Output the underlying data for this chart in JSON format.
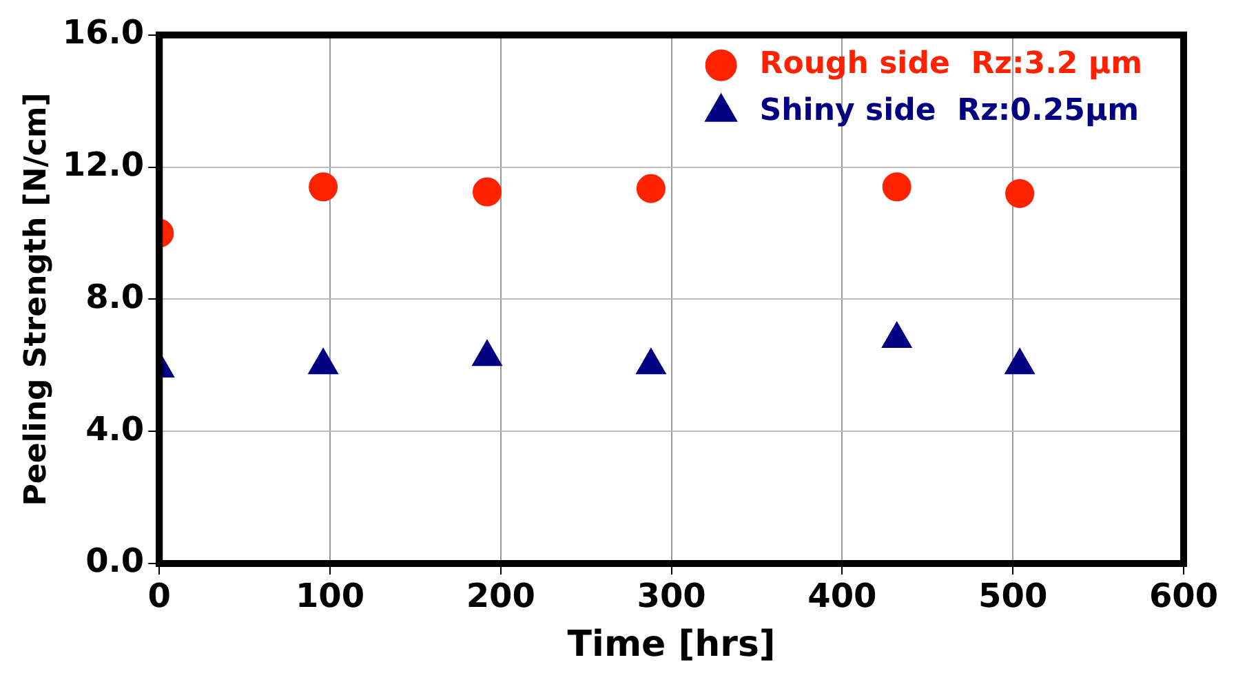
{
  "chart_data": {
    "type": "scatter",
    "xlabel": "Time [hrs]",
    "ylabel": "Peeling Strength [N/cm]",
    "x": [
      0,
      96,
      192,
      288,
      432,
      504
    ],
    "series": [
      {
        "name": "Rough side  Rz:3.2 μm",
        "color": "#ff2200",
        "marker": "circle",
        "values": [
          10.0,
          11.4,
          11.25,
          11.35,
          11.4,
          11.2
        ]
      },
      {
        "name": "Shiny side  Rz:0.25μm",
        "color": "#000080",
        "marker": "triangle",
        "values": [
          5.9,
          6.0,
          6.25,
          6.0,
          6.8,
          6.0
        ]
      }
    ],
    "xlim": [
      0,
      600
    ],
    "xticks": [
      0,
      100,
      200,
      300,
      400,
      500,
      600
    ],
    "ylim": [
      0,
      16
    ],
    "yticks": [
      {
        "value": 0,
        "label": "0.0"
      },
      {
        "value": 4,
        "label": "4.0"
      },
      {
        "value": 8,
        "label": "8.0"
      },
      {
        "value": 12,
        "label": "12.0"
      },
      {
        "value": 16,
        "label": "16.0"
      }
    ],
    "grid": true,
    "legend": "top right"
  }
}
